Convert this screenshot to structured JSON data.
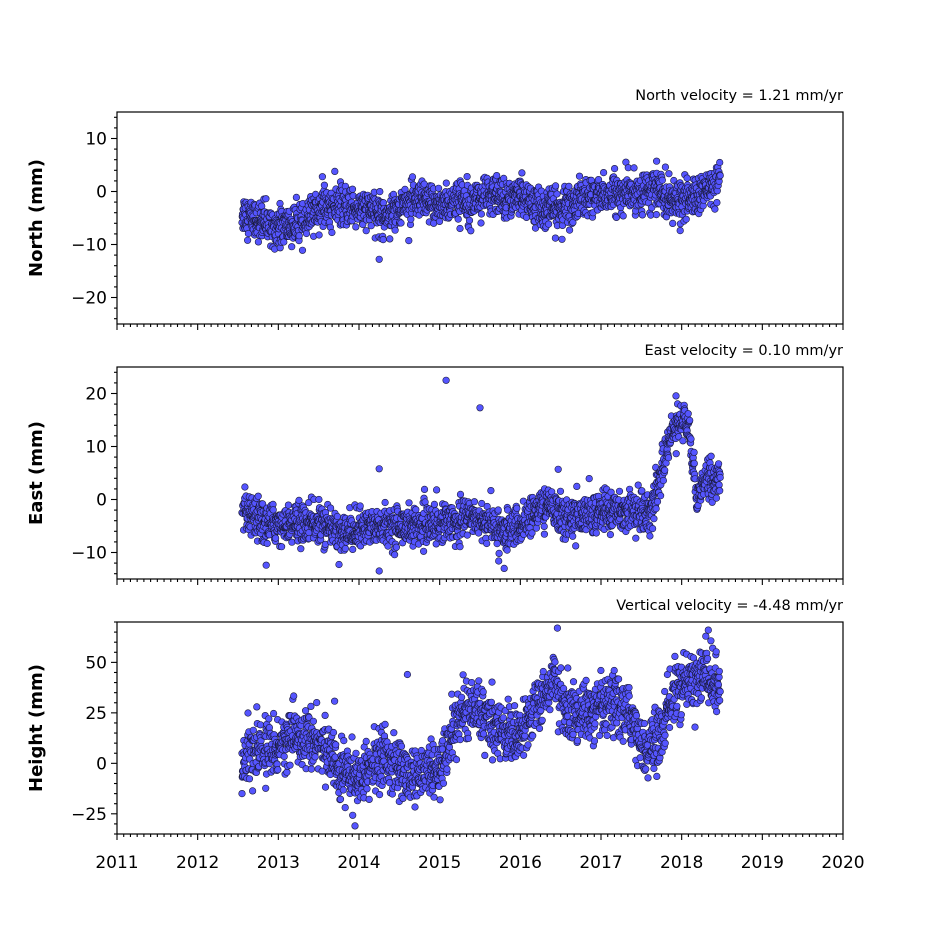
{
  "chart_data": [
    {
      "type": "scatter",
      "title": "North velocity = 1.21 mm/yr",
      "ylabel": "North (mm)",
      "ylim": [
        -25,
        15
      ],
      "yticks": [
        10,
        0,
        -10,
        -20
      ],
      "xlim": [
        2011,
        2020
      ],
      "xticks": [
        2011,
        2012,
        2013,
        2014,
        2015,
        2016,
        2017,
        2018,
        2019,
        2020
      ],
      "show_xtick_labels": false,
      "marker_color": "#5555ff",
      "series": [
        {
          "time_range": [
            2012.55,
            2018.48
          ],
          "trend": [
            [
              2012.55,
              -4
            ],
            [
              2012.9,
              -6.5
            ],
            [
              2013.3,
              -6.5
            ],
            [
              2013.5,
              -3
            ],
            [
              2014.0,
              -3
            ],
            [
              2014.3,
              -4.5
            ],
            [
              2014.6,
              -2
            ],
            [
              2015.0,
              -2.5
            ],
            [
              2015.5,
              -1
            ],
            [
              2016.0,
              -1
            ],
            [
              2016.2,
              -3
            ],
            [
              2016.5,
              -3.5
            ],
            [
              2016.8,
              -1
            ],
            [
              2017.3,
              -0.5
            ],
            [
              2017.7,
              0.5
            ],
            [
              2017.9,
              -2
            ],
            [
              2018.2,
              -1
            ],
            [
              2018.48,
              2
            ]
          ],
          "scatter": 1.8,
          "outliers": [
            [
              2014.25,
              -12.8
            ],
            [
              2013.7,
              3.8
            ],
            [
              2016.02,
              3.5
            ]
          ]
        }
      ]
    },
    {
      "type": "scatter",
      "title": "East velocity = 0.10 mm/yr",
      "ylabel": "East (mm)",
      "ylim": [
        -15,
        25
      ],
      "yticks": [
        20,
        10,
        0,
        -10
      ],
      "xlim": [
        2011,
        2020
      ],
      "xticks": [
        2011,
        2012,
        2013,
        2014,
        2015,
        2016,
        2017,
        2018,
        2019,
        2020
      ],
      "show_xtick_labels": false,
      "marker_color": "#5555ff",
      "series": [
        {
          "time_range": [
            2012.55,
            2018.48
          ],
          "trend": [
            [
              2012.55,
              -2.5
            ],
            [
              2012.8,
              -4.5
            ],
            [
              2013.5,
              -4.5
            ],
            [
              2013.8,
              -6.5
            ],
            [
              2014.2,
              -5
            ],
            [
              2014.8,
              -5
            ],
            [
              2015.0,
              -4.5
            ],
            [
              2015.4,
              -3
            ],
            [
              2015.8,
              -6
            ],
            [
              2016.0,
              -5
            ],
            [
              2016.3,
              -1
            ],
            [
              2016.6,
              -3.5
            ],
            [
              2017.0,
              -2.5
            ],
            [
              2017.4,
              -2
            ],
            [
              2017.6,
              -3
            ],
            [
              2017.75,
              5
            ],
            [
              2017.85,
              12
            ],
            [
              2018.0,
              15
            ],
            [
              2018.1,
              13
            ],
            [
              2018.18,
              1
            ],
            [
              2018.3,
              4
            ],
            [
              2018.48,
              4
            ]
          ],
          "scatter": 1.8,
          "outliers": [
            [
              2015.08,
              22.5
            ],
            [
              2015.5,
              17.3
            ],
            [
              2014.25,
              5.8
            ],
            [
              2014.25,
              -13.5
            ],
            [
              2016.47,
              5.7
            ],
            [
              2012.85,
              -12.4
            ],
            [
              2015.8,
              -13
            ]
          ]
        }
      ]
    },
    {
      "type": "scatter",
      "title": "Vertical velocity = -4.48 mm/yr",
      "ylabel": "Height (mm)",
      "ylim": [
        -35,
        70
      ],
      "yticks": [
        50,
        25,
        0,
        -25
      ],
      "xlim": [
        2011,
        2020
      ],
      "xticks": [
        2011,
        2012,
        2013,
        2014,
        2015,
        2016,
        2017,
        2018,
        2019,
        2020
      ],
      "show_xtick_labels": true,
      "marker_color": "#5555ff",
      "series": [
        {
          "time_range": [
            2012.55,
            2018.48
          ],
          "trend": [
            [
              2012.55,
              3
            ],
            [
              2012.9,
              8
            ],
            [
              2013.2,
              14
            ],
            [
              2013.5,
              10
            ],
            [
              2013.8,
              -4
            ],
            [
              2014.0,
              -8
            ],
            [
              2014.3,
              3
            ],
            [
              2014.6,
              -6
            ],
            [
              2015.0,
              -5
            ],
            [
              2015.1,
              10
            ],
            [
              2015.3,
              28
            ],
            [
              2015.5,
              25
            ],
            [
              2015.7,
              18
            ],
            [
              2016.0,
              14
            ],
            [
              2016.2,
              28
            ],
            [
              2016.4,
              42
            ],
            [
              2016.6,
              25
            ],
            [
              2016.9,
              25
            ],
            [
              2017.2,
              28
            ],
            [
              2017.4,
              22
            ],
            [
              2017.55,
              5
            ],
            [
              2017.75,
              15
            ],
            [
              2017.9,
              35
            ],
            [
              2018.1,
              40
            ],
            [
              2018.3,
              45
            ],
            [
              2018.48,
              35
            ]
          ],
          "scatter": 7,
          "outliers": [
            [
              2016.46,
              67
            ],
            [
              2018.33,
              66
            ],
            [
              2014.6,
              44
            ],
            [
              2012.55,
              -15
            ],
            [
              2013.95,
              -31
            ]
          ]
        }
      ]
    }
  ]
}
